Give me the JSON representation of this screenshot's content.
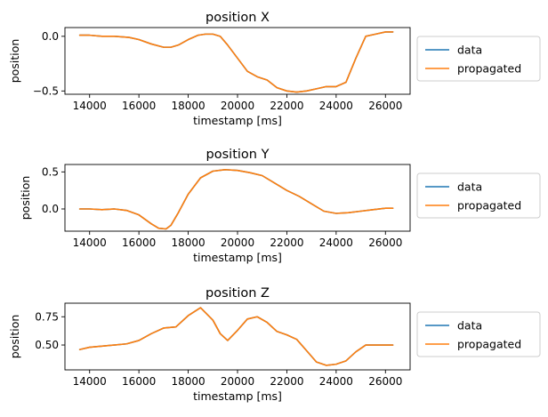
{
  "chart_data": [
    {
      "type": "line",
      "title": "position X",
      "xlabel": "timestamp [ms]",
      "ylabel": "position",
      "xlim": [
        13000,
        27000
      ],
      "ylim": [
        -0.53,
        0.08
      ],
      "xticks": [
        14000,
        16000,
        18000,
        20000,
        22000,
        24000,
        26000
      ],
      "xtick_labels": [
        "14000",
        "16000",
        "18000",
        "20000",
        "22000",
        "24000",
        "26000"
      ],
      "yticks": [
        0.0,
        -0.5
      ],
      "ytick_labels": [
        "0.0",
        "−0.5"
      ],
      "legend": "outside-right",
      "series": [
        {
          "name": "data",
          "color": "#1f77b4",
          "x": [
            13600,
            14000,
            14500,
            15000,
            15600,
            16000,
            16500,
            17000,
            17300,
            17600,
            18000,
            18400,
            18700,
            19000,
            19300,
            19600,
            20000,
            20400,
            20800,
            21200,
            21600,
            22000,
            22400,
            22800,
            23200,
            23600,
            24000,
            24400,
            24800,
            25200,
            25600,
            26000,
            26300
          ],
          "y": [
            0.01,
            0.01,
            0.0,
            0.0,
            -0.01,
            -0.03,
            -0.07,
            -0.1,
            -0.1,
            -0.08,
            -0.03,
            0.01,
            0.02,
            0.02,
            0.0,
            -0.08,
            -0.2,
            -0.32,
            -0.37,
            -0.4,
            -0.47,
            -0.5,
            -0.51,
            -0.5,
            -0.48,
            -0.46,
            -0.46,
            -0.42,
            -0.2,
            0.0,
            0.02,
            0.04,
            0.04
          ]
        },
        {
          "name": "propagated",
          "color": "#ff7f0e",
          "x": [
            13600,
            14000,
            14500,
            15000,
            15600,
            16000,
            16500,
            17000,
            17300,
            17600,
            18000,
            18400,
            18700,
            19000,
            19300,
            19600,
            20000,
            20400,
            20800,
            21200,
            21600,
            22000,
            22400,
            22800,
            23200,
            23600,
            24000,
            24400,
            24800,
            25200,
            25600,
            26000,
            26300
          ],
          "y": [
            0.01,
            0.01,
            0.0,
            0.0,
            -0.01,
            -0.03,
            -0.07,
            -0.1,
            -0.1,
            -0.08,
            -0.03,
            0.01,
            0.02,
            0.02,
            0.0,
            -0.08,
            -0.2,
            -0.32,
            -0.37,
            -0.4,
            -0.47,
            -0.5,
            -0.51,
            -0.5,
            -0.48,
            -0.46,
            -0.46,
            -0.42,
            -0.2,
            0.0,
            0.02,
            0.04,
            0.04
          ]
        }
      ]
    },
    {
      "type": "line",
      "title": "position Y",
      "xlabel": "timestamp [ms]",
      "ylabel": "position",
      "xlim": [
        13000,
        27000
      ],
      "ylim": [
        -0.3,
        0.6
      ],
      "xticks": [
        14000,
        16000,
        18000,
        20000,
        22000,
        24000,
        26000
      ],
      "xtick_labels": [
        "14000",
        "16000",
        "18000",
        "20000",
        "22000",
        "24000",
        "26000"
      ],
      "yticks": [
        0.5,
        0.0
      ],
      "ytick_labels": [
        "0.5",
        "0.0"
      ],
      "legend": "outside-right",
      "series": [
        {
          "name": "data",
          "color": "#1f77b4",
          "x": [
            13600,
            14000,
            14500,
            15000,
            15500,
            16000,
            16500,
            16800,
            17100,
            17300,
            17600,
            18000,
            18500,
            19000,
            19500,
            20000,
            20500,
            21000,
            21500,
            22000,
            22500,
            23000,
            23500,
            24000,
            24500,
            25000,
            25500,
            26000,
            26300
          ],
          "y": [
            0.0,
            0.0,
            -0.01,
            0.0,
            -0.02,
            -0.08,
            -0.2,
            -0.26,
            -0.27,
            -0.22,
            -0.05,
            0.2,
            0.42,
            0.51,
            0.53,
            0.52,
            0.49,
            0.45,
            0.35,
            0.25,
            0.17,
            0.07,
            -0.03,
            -0.06,
            -0.05,
            -0.03,
            -0.01,
            0.01,
            0.01
          ]
        },
        {
          "name": "propagated",
          "color": "#ff7f0e",
          "x": [
            13600,
            14000,
            14500,
            15000,
            15500,
            16000,
            16500,
            16800,
            17100,
            17300,
            17600,
            18000,
            18500,
            19000,
            19500,
            20000,
            20500,
            21000,
            21500,
            22000,
            22500,
            23000,
            23500,
            24000,
            24500,
            25000,
            25500,
            26000,
            26300
          ],
          "y": [
            0.0,
            0.0,
            -0.01,
            0.0,
            -0.02,
            -0.08,
            -0.2,
            -0.26,
            -0.27,
            -0.22,
            -0.05,
            0.2,
            0.42,
            0.51,
            0.53,
            0.52,
            0.49,
            0.45,
            0.35,
            0.25,
            0.17,
            0.07,
            -0.03,
            -0.06,
            -0.05,
            -0.03,
            -0.01,
            0.01,
            0.01
          ]
        }
      ]
    },
    {
      "type": "line",
      "title": "position Z",
      "xlabel": "timestamp [ms]",
      "ylabel": "position",
      "xlim": [
        13000,
        27000
      ],
      "ylim": [
        0.28,
        0.87
      ],
      "xticks": [
        14000,
        16000,
        18000,
        20000,
        22000,
        24000,
        26000
      ],
      "xtick_labels": [
        "14000",
        "16000",
        "18000",
        "20000",
        "22000",
        "24000",
        "26000"
      ],
      "yticks": [
        0.75,
        0.5
      ],
      "ytick_labels": [
        "0.75",
        "0.50"
      ],
      "legend": "outside-right",
      "series": [
        {
          "name": "data",
          "color": "#1f77b4",
          "x": [
            13600,
            14000,
            14500,
            15000,
            15500,
            16000,
            16500,
            17000,
            17500,
            18000,
            18500,
            19000,
            19300,
            19600,
            20000,
            20400,
            20800,
            21200,
            21600,
            22000,
            22400,
            22800,
            23200,
            23600,
            24000,
            24400,
            24800,
            25200,
            25600,
            26000,
            26300
          ],
          "y": [
            0.46,
            0.48,
            0.49,
            0.5,
            0.51,
            0.54,
            0.6,
            0.65,
            0.66,
            0.76,
            0.83,
            0.72,
            0.6,
            0.54,
            0.63,
            0.73,
            0.75,
            0.7,
            0.62,
            0.59,
            0.55,
            0.45,
            0.35,
            0.32,
            0.33,
            0.36,
            0.44,
            0.5,
            0.5,
            0.5,
            0.5
          ]
        },
        {
          "name": "propagated",
          "color": "#ff7f0e",
          "x": [
            13600,
            14000,
            14500,
            15000,
            15500,
            16000,
            16500,
            17000,
            17500,
            18000,
            18500,
            19000,
            19300,
            19600,
            20000,
            20400,
            20800,
            21200,
            21600,
            22000,
            22400,
            22800,
            23200,
            23600,
            24000,
            24400,
            24800,
            25200,
            25600,
            26000,
            26300
          ],
          "y": [
            0.46,
            0.48,
            0.49,
            0.5,
            0.51,
            0.54,
            0.6,
            0.65,
            0.66,
            0.76,
            0.83,
            0.72,
            0.6,
            0.54,
            0.63,
            0.73,
            0.75,
            0.7,
            0.62,
            0.59,
            0.55,
            0.45,
            0.35,
            0.32,
            0.33,
            0.36,
            0.44,
            0.5,
            0.5,
            0.5,
            0.5
          ]
        }
      ]
    }
  ]
}
